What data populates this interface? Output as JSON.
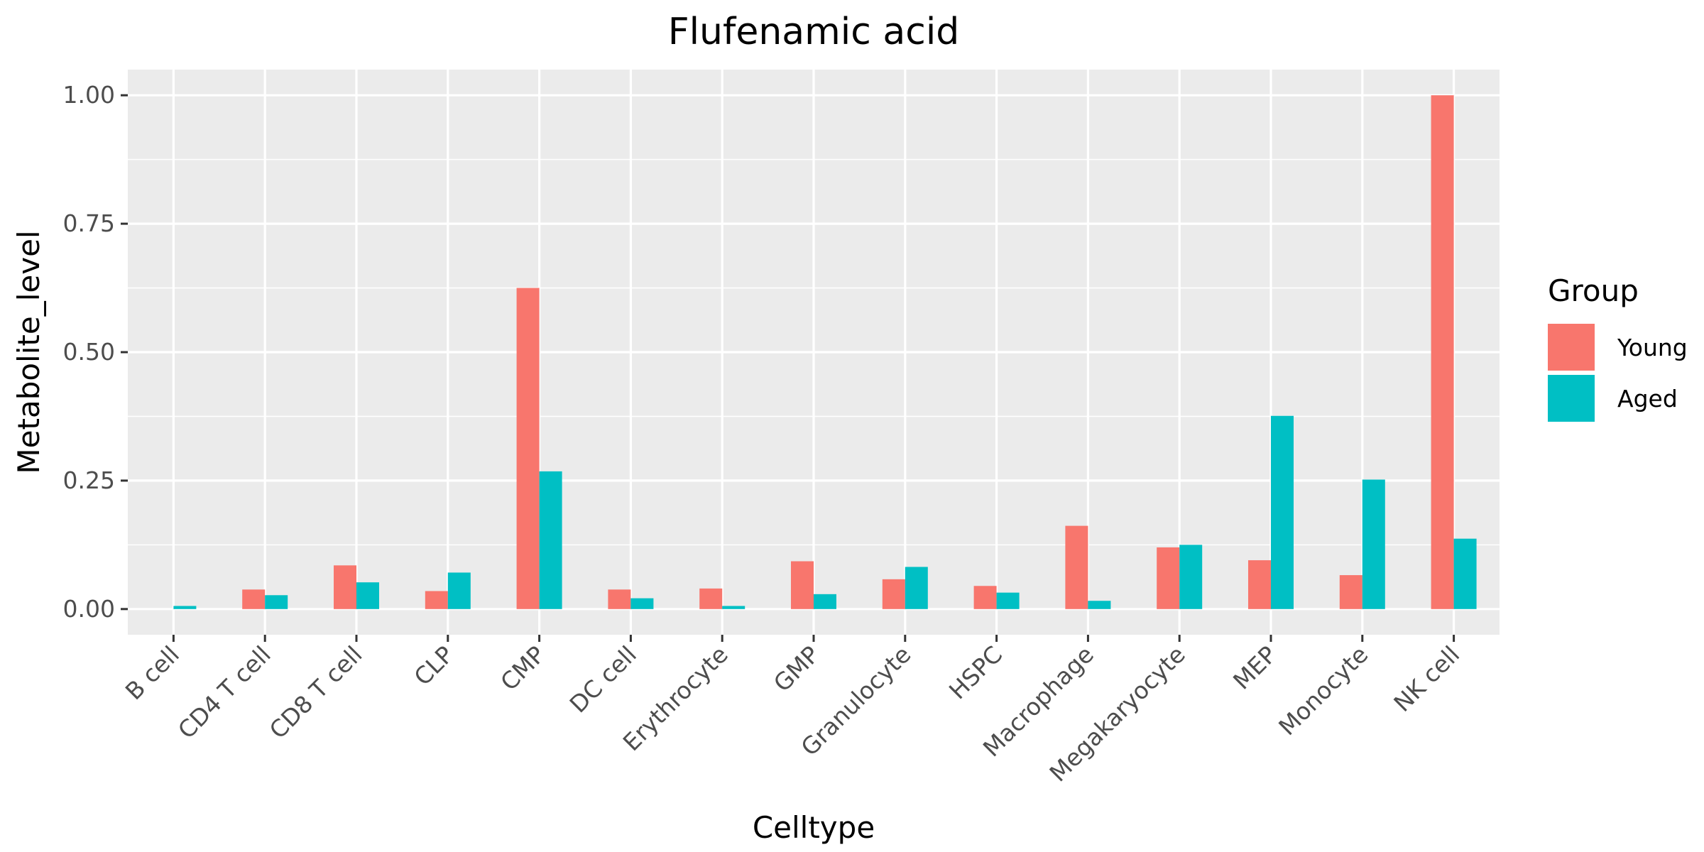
{
  "chart_data": {
    "type": "bar",
    "title": "Flufenamic acid",
    "xlabel": "Celltype",
    "ylabel": "Metabolite_level",
    "categories": [
      "B cell",
      "CD4 T cell",
      "CD8 T cell",
      "CLP",
      "CMP",
      "DC cell",
      "Erythrocyte",
      "GMP",
      "Granulocyte",
      "HSPC",
      "Macrophage",
      "Megakaryocyte",
      "MEP",
      "Monocyte",
      "NK cell"
    ],
    "series": [
      {
        "name": "Young",
        "color": "#F8766D",
        "values": [
          0.0,
          0.038,
          0.085,
          0.035,
          0.625,
          0.038,
          0.04,
          0.093,
          0.058,
          0.045,
          0.162,
          0.12,
          0.095,
          0.066,
          1.0
        ]
      },
      {
        "name": "Aged",
        "color": "#00BFC4",
        "values": [
          0.006,
          0.027,
          0.052,
          0.071,
          0.268,
          0.021,
          0.006,
          0.029,
          0.082,
          0.032,
          0.016,
          0.125,
          0.376,
          0.252,
          0.137
        ]
      }
    ],
    "ylim": [
      -0.05,
      1.05
    ],
    "yticks": [
      0.0,
      0.25,
      0.5,
      0.75,
      1.0
    ],
    "ytick_labels": [
      "0.00",
      "0.25",
      "0.50",
      "0.75",
      "1.00"
    ],
    "grid": true,
    "panel_background": "#EBEBEB",
    "legend": {
      "title": "Group",
      "position": "right"
    }
  }
}
